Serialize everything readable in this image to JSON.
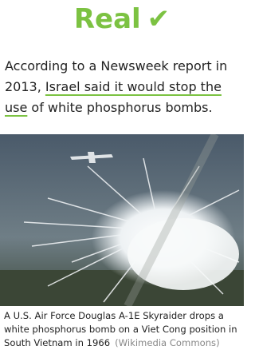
{
  "header": {
    "verdict": "Real",
    "icon": "✔"
  },
  "body": {
    "text_before": "According to a Newsweek report in 2013, ",
    "link": "Israel said it would stop the use",
    "text_after": " of white phosphorus bombs."
  },
  "figure": {
    "caption": "A U.S. Air Force Douglas A-1E Skyraider drops a white phosphorus bomb on a Viet Cong position in South Vietnam in 1966",
    "credit": "(Wikimedia Commons)"
  }
}
